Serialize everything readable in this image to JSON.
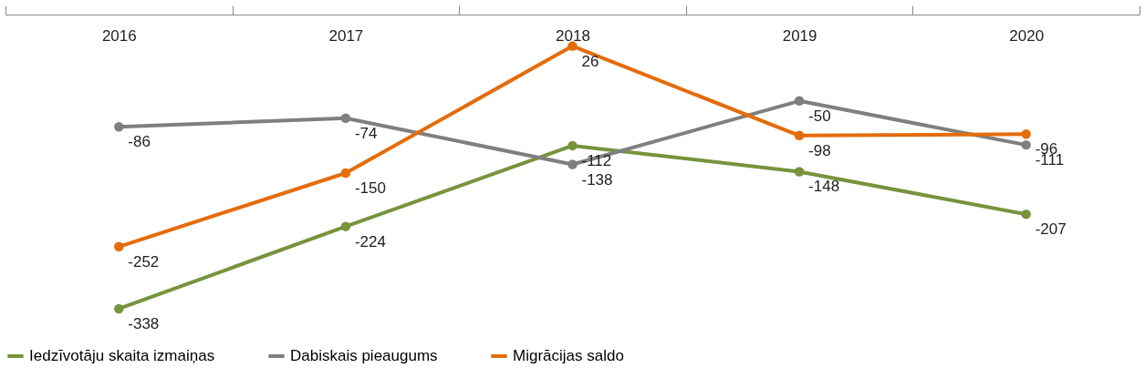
{
  "chart_data": {
    "type": "line",
    "categories": [
      "2016",
      "2017",
      "2018",
      "2019",
      "2020"
    ],
    "series": [
      {
        "name": "Iedzīvotāju skaita izmaiņas",
        "color": "#77933c",
        "values": [
          -338,
          -224,
          -112,
          -148,
          -207
        ]
      },
      {
        "name": "Dabiskais pieaugums",
        "color": "#7f7f7f",
        "values": [
          -86,
          -74,
          -138,
          -50,
          -111
        ]
      },
      {
        "name": "Migrācijas saldo",
        "color": "#e46c0a",
        "values": [
          -252,
          -150,
          26,
          -98,
          -96
        ]
      }
    ],
    "data_labels": true,
    "marker": "circle",
    "legend": "bottom",
    "grid": false,
    "tick_labels": "x"
  }
}
